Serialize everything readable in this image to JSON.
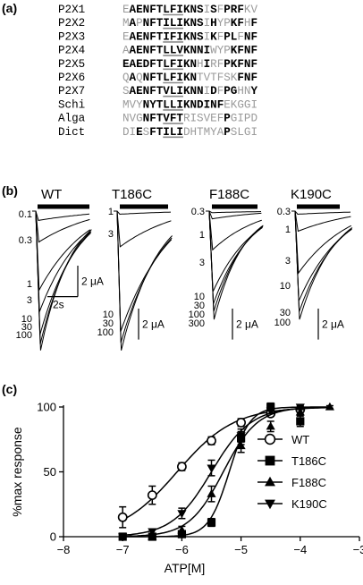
{
  "panels": {
    "a": {
      "label": "(a)"
    },
    "b": {
      "label": "(b)"
    },
    "c": {
      "label": "(c)"
    }
  },
  "alignment": {
    "underline_cols": [
      6,
      7,
      8
    ],
    "rows": [
      {
        "name": "P2X1",
        "residues": "EAENFTLFIKNSISFPRFKV",
        "bold": [
          1,
          2,
          3,
          4,
          5,
          6,
          7,
          8,
          9,
          10,
          11,
          13,
          15,
          16,
          17
        ]
      },
      {
        "name": "P2X2",
        "residues": "MAPNFTILIKNSIHYPKFHF",
        "bold": [
          1,
          3,
          4,
          5,
          6,
          7,
          8,
          9,
          10,
          11,
          13,
          16,
          17,
          19
        ]
      },
      {
        "name": "P2X3",
        "residues": "EAENFTIFIKNSIKFPLFNF",
        "bold": [
          1,
          2,
          3,
          4,
          5,
          6,
          7,
          8,
          9,
          10,
          11,
          13,
          15,
          16,
          18,
          19
        ]
      },
      {
        "name": "P2X4",
        "residues": "AAENFTLLVKNNIWYPKFNF",
        "bold": [
          1,
          2,
          3,
          4,
          5,
          6,
          7,
          8,
          9,
          10,
          11,
          12,
          16,
          17,
          18,
          19
        ]
      },
      {
        "name": "P2X5",
        "residues": "EAEDFTLFIKNHIRFPKFNF",
        "bold": [
          0,
          1,
          2,
          3,
          4,
          5,
          6,
          7,
          8,
          9,
          10,
          12,
          15,
          16,
          17,
          18,
          19
        ]
      },
      {
        "name": "P2X6",
        "residues": "QAQNFTLFIKNTVTFSKFNF",
        "bold": [
          1,
          3,
          4,
          5,
          6,
          7,
          8,
          9,
          10,
          17,
          18,
          19
        ]
      },
      {
        "name": "P2X7",
        "residues": "SAENFTVLIKNNIDFPGHNY",
        "bold": [
          1,
          2,
          3,
          4,
          5,
          6,
          7,
          8,
          9,
          10,
          11,
          13,
          15,
          16,
          19
        ]
      },
      {
        "name": "Schi",
        "residues": "MVYNYTLLIKNDINFEKGGI",
        "bold": [
          3,
          4,
          5,
          6,
          7,
          8,
          9,
          10,
          11,
          12,
          13,
          14
        ]
      },
      {
        "name": "Alga",
        "residues": "NVGNFTVFTRISVEFPGIPD",
        "bold": [
          3,
          4,
          5,
          6,
          7,
          8,
          15
        ]
      },
      {
        "name": "Dict",
        "residues": "DIESFTILIDHTMYAPSLGI",
        "bold": [
          2,
          4,
          5,
          6,
          7,
          8,
          15
        ]
      }
    ]
  },
  "traces": [
    {
      "title": "WT",
      "scale_label": "2 μA",
      "time_label": "2s",
      "concentrations": [
        "0.1",
        "0.3",
        "1",
        "3",
        "10",
        "30",
        "100"
      ],
      "peaks": [
        0.6,
        2.0,
        5.1,
        6.5,
        8.0,
        8.6,
        9.0
      ]
    },
    {
      "title": "T186C",
      "scale_label": "2 μA",
      "concentrations": [
        "1",
        "3",
        "10",
        "30",
        "100"
      ],
      "peaks": [
        0.2,
        2.3,
        7.8,
        8.5,
        9.0
      ]
    },
    {
      "title": "F188C",
      "scale_label": "2 μA",
      "concentrations": [
        "0.3",
        "1",
        "3",
        "10",
        "30",
        "100",
        "300"
      ],
      "peaks": [
        0.1,
        0.5,
        2.5,
        5.2,
        6.0,
        6.5,
        7.0
      ]
    },
    {
      "title": "K190C",
      "scale_label": "2 μA",
      "concentrations": [
        "0.3",
        "1",
        "3",
        "10",
        "30",
        "100"
      ],
      "peaks": [
        0.2,
        1.3,
        4.0,
        5.8,
        6.5,
        7.0
      ]
    }
  ],
  "chart_data": {
    "type": "scatter",
    "xlabel": "ATP[M]",
    "ylabel": "%max response",
    "xlim": [
      -8,
      -3
    ],
    "ylim": [
      0,
      100
    ],
    "xticks": [
      -8,
      -7,
      -6,
      -5,
      -4,
      -3
    ],
    "yticks": [
      0,
      50,
      100
    ],
    "legend_position": "right",
    "series": [
      {
        "name": "WT",
        "marker": "circle-open",
        "x": [
          -7.0,
          -6.5,
          -6.0,
          -5.5,
          -5.0,
          -4.5,
          -4.0
        ],
        "y": [
          15,
          32,
          54,
          74,
          88,
          95,
          98
        ],
        "err": [
          8,
          7,
          3,
          3,
          3,
          2,
          2
        ],
        "ec50": -6.08,
        "hill": 0.9
      },
      {
        "name": "T186C",
        "marker": "square",
        "x": [
          -7.0,
          -6.5,
          -6.0,
          -5.5,
          -5.0,
          -4.5,
          -4.0
        ],
        "y": [
          0,
          0,
          2,
          11,
          76,
          100,
          89
        ],
        "err": [
          0,
          0,
          1,
          3,
          5,
          3,
          4
        ],
        "ec50": -5.2,
        "hill": 2.5
      },
      {
        "name": "F188C",
        "marker": "triangle-up",
        "x": [
          -6.5,
          -6.0,
          -5.5,
          -5.0,
          -4.5,
          -4.0,
          -3.5
        ],
        "y": [
          0,
          5,
          33,
          70,
          85,
          96,
          100
        ],
        "err": [
          0,
          3,
          6,
          5,
          4,
          2,
          1
        ],
        "ec50": -5.3,
        "hill": 1.5
      },
      {
        "name": "K190C",
        "marker": "triangle-down",
        "x": [
          -7.0,
          -6.5,
          -6.0,
          -5.5,
          -5.0,
          -4.5,
          -4.0
        ],
        "y": [
          0,
          4,
          18,
          53,
          78,
          97,
          100
        ],
        "err": [
          0,
          2,
          4,
          6,
          5,
          2,
          1
        ],
        "ec50": -5.5,
        "hill": 1.3
      }
    ]
  }
}
